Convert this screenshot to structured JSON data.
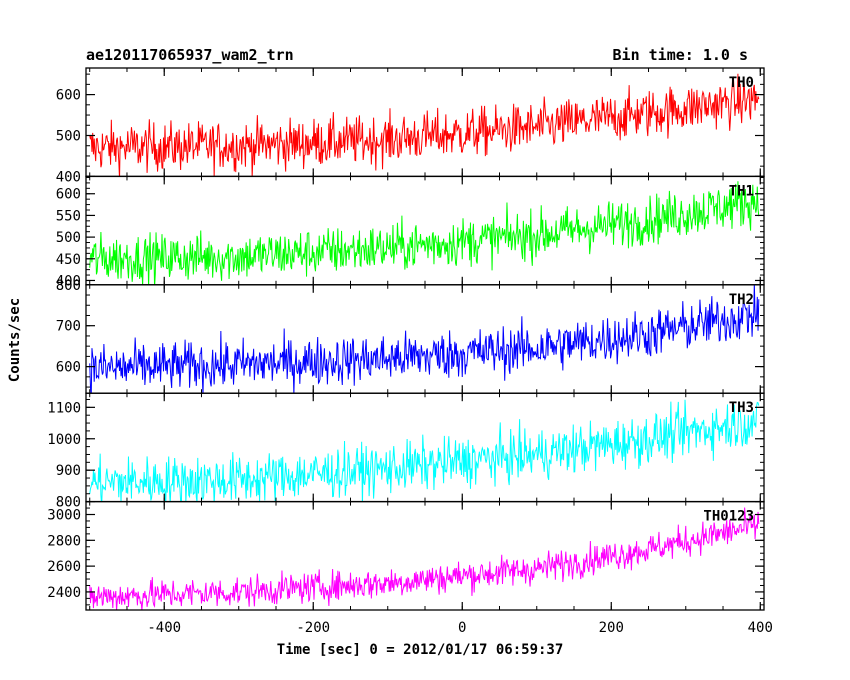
{
  "header": {
    "left_title": "ae120117065937_wam2_trn",
    "right_title": "Bin time: 1.0 s"
  },
  "chart_data": {
    "type": "line",
    "xlabel": "Time [sec] 0 = 2012/01/17 06:59:37",
    "ylabel": "Counts/sec",
    "xlim": [
      -505,
      405
    ],
    "xticks": [
      -400,
      -200,
      0,
      200,
      400
    ],
    "bin_time_s": 1.0,
    "panels": [
      {
        "name": "TH0",
        "color": "#ff0000",
        "ylim": [
          400,
          665
        ],
        "yticks": [
          400,
          500,
          600
        ],
        "trend": [
          [
            -500,
            470
          ],
          [
            -300,
            475
          ],
          [
            -100,
            490
          ],
          [
            100,
            520
          ],
          [
            250,
            555
          ],
          [
            400,
            590
          ]
        ],
        "noise": 30
      },
      {
        "name": "TH1",
        "color": "#00ff00",
        "ylim": [
          390,
          640
        ],
        "yticks": [
          400,
          450,
          500,
          550,
          600
        ],
        "trend": [
          [
            -500,
            450
          ],
          [
            -300,
            455
          ],
          [
            -100,
            475
          ],
          [
            100,
            505
          ],
          [
            250,
            540
          ],
          [
            400,
            585
          ]
        ],
        "noise": 28
      },
      {
        "name": "TH2",
        "color": "#0000ff",
        "ylim": [
          535,
          800
        ],
        "yticks": [
          600,
          700,
          800
        ],
        "trend": [
          [
            -500,
            595
          ],
          [
            -300,
            605
          ],
          [
            -100,
            620
          ],
          [
            100,
            645
          ],
          [
            250,
            680
          ],
          [
            400,
            730
          ]
        ],
        "noise": 30
      },
      {
        "name": "TH3",
        "color": "#00ffff",
        "ylim": [
          800,
          1145
        ],
        "yticks": [
          800,
          900,
          1000,
          1100
        ],
        "trend": [
          [
            -500,
            860
          ],
          [
            -300,
            870
          ],
          [
            -100,
            905
          ],
          [
            100,
            950
          ],
          [
            250,
            1000
          ],
          [
            400,
            1060
          ]
        ],
        "noise": 40
      },
      {
        "name": "TH0123",
        "color": "#ff00ff",
        "ylim": [
          2260,
          3100
        ],
        "yticks": [
          2400,
          2600,
          2800,
          3000
        ],
        "trend": [
          [
            -500,
            2360
          ],
          [
            -300,
            2400
          ],
          [
            -100,
            2470
          ],
          [
            100,
            2580
          ],
          [
            250,
            2730
          ],
          [
            400,
            2920
          ]
        ],
        "noise": 60
      }
    ]
  }
}
